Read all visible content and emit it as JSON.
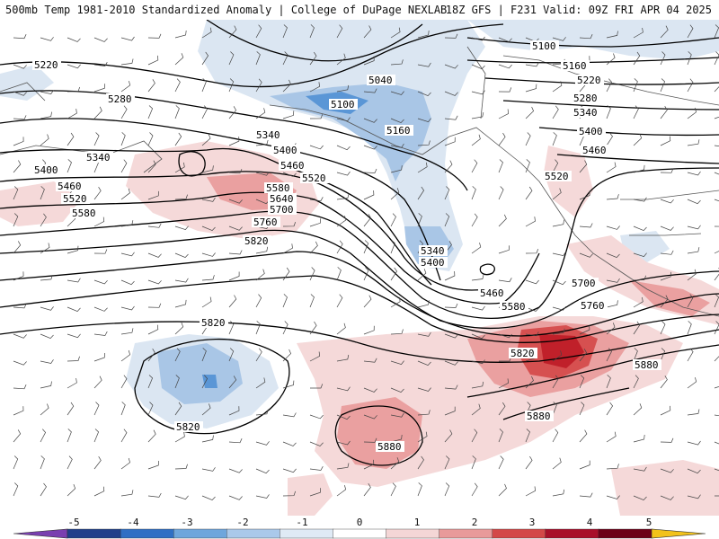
{
  "header": {
    "title": "500mb Temp 1981-2010 Standardized Anomaly | College of DuPage NEXLAB",
    "valid": "18Z GFS | F231 Valid: 09Z FRI APR 04 2025"
  },
  "map": {
    "contour_labels": [
      "5100",
      "5160",
      "5220",
      "5280",
      "5340",
      "5400",
      "5460",
      "5520",
      "5580",
      "5640",
      "5700",
      "5760",
      "5820",
      "5880",
      "5040"
    ],
    "colors": {
      "anomaly_neg_1": "#dbe6f2",
      "anomaly_neg_2": "#a9c6e6",
      "anomaly_neg_3": "#5a96d6",
      "anomaly_pos_1": "#f5d9d9",
      "anomaly_pos_2": "#eaa0a0",
      "anomaly_pos_3": "#d65050",
      "anomaly_pos_4": "#c0202a"
    }
  },
  "colorbar": {
    "ticks": [
      "-5",
      "-4",
      "-3",
      "-2",
      "-1",
      "0",
      "1",
      "2",
      "3",
      "4",
      "5"
    ],
    "colors": [
      "#7a3fb0",
      "#1f3f8a",
      "#2f6fc4",
      "#6ea6dc",
      "#aac9ea",
      "#dfeaf5",
      "#ffffff",
      "#f4d6d6",
      "#e89a9a",
      "#d34848",
      "#a8102a",
      "#6c0018",
      "#f2c21a"
    ]
  }
}
